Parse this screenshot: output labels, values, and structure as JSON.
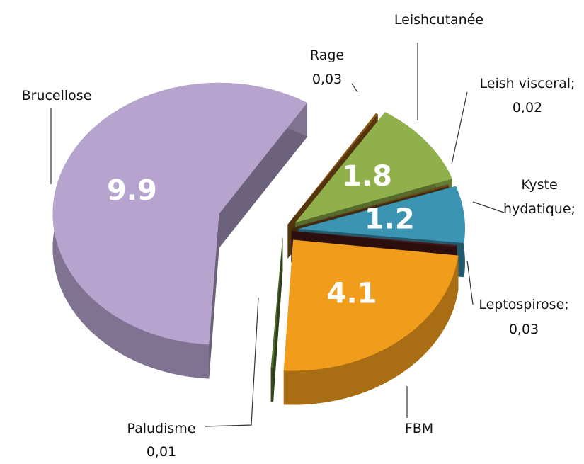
{
  "chart_data": {
    "type": "pie3d",
    "categories": [
      "Rage",
      "Leishcutanée",
      "Leish visceral;",
      "Kyste hydatique;",
      "Leptospirose;",
      "FBM",
      "Paludisme",
      "Brucellose"
    ],
    "values": [
      0.03,
      1.8,
      0.02,
      1.2,
      0.03,
      4.1,
      0.01,
      9.9
    ],
    "value_labels": [
      "0,03",
      "1.8",
      "0,02",
      "1.2",
      "0,03",
      "4.1",
      "0,01",
      "9.9"
    ],
    "colors": [
      "#8a5714",
      "#8fb04a",
      "#6b4a1e",
      "#3a94b2",
      "#4a1818",
      "#f19d1c",
      "#4d6b2a",
      "#b6a4cf"
    ]
  }
}
